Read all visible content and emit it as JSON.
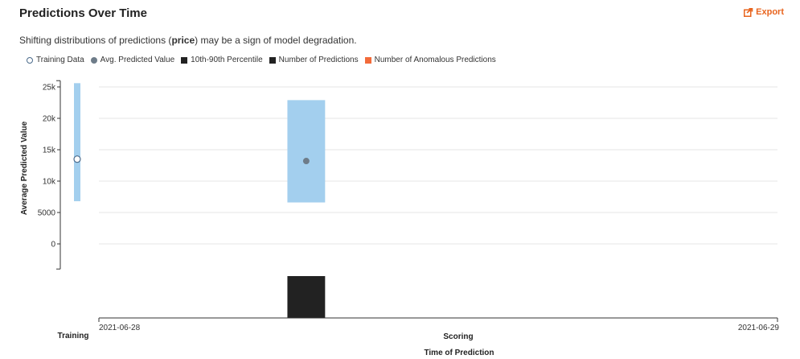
{
  "header": {
    "title": "Predictions Over Time",
    "export_label": "Export",
    "subtitle_before": "Shifting distributions of predictions (",
    "subtitle_bold": "price",
    "subtitle_after": ") may be a sign of model degradation."
  },
  "legend": [
    {
      "label": "Training Data",
      "symbol": "open-circle",
      "color": "#4a6a8a"
    },
    {
      "label": "Avg. Predicted Value",
      "symbol": "filled-circle",
      "color": "#6e7c89"
    },
    {
      "label": "10th-90th Percentile",
      "symbol": "square",
      "color": "#222222"
    },
    {
      "label": "Number of Predictions",
      "symbol": "square",
      "color": "#222222"
    },
    {
      "label": "Number of Anomalous Predictions",
      "symbol": "square",
      "color": "#f26b3a"
    }
  ],
  "chart_data": {
    "type": "bar",
    "ylabel": "Average Predicted Value",
    "xlabel": "Time of Prediction",
    "ylim": [
      -4000,
      26000
    ],
    "yticks": [
      0,
      5000,
      10000,
      15000,
      20000,
      25000
    ],
    "ytick_labels": [
      "0",
      "5000",
      "10k",
      "15k",
      "20k",
      "25k"
    ],
    "grid": true,
    "training": {
      "label": "Training",
      "p10": 6800,
      "p90": 25600,
      "avg": 13500
    },
    "scoring": {
      "label": "Scoring",
      "x_start_label": "2021-06-28",
      "x_end_label": "2021-06-29",
      "x_range": [
        "2021-06-28",
        "2021-06-29"
      ],
      "bins": [
        {
          "x_start": "2021-06-28T06:40",
          "x_end": "2021-06-28T08:00",
          "p10": 6600,
          "p90": 22900,
          "avg": 13200,
          "num_predictions": 1,
          "num_anomalous": 0
        }
      ]
    },
    "colors": {
      "percentile_band": "#a3cfee",
      "avg_point": "#6e7c89",
      "training_point_stroke": "#4a6a8a",
      "count_bar": "#222222",
      "grid": "#e4e4e4",
      "axis": "#333333"
    }
  }
}
